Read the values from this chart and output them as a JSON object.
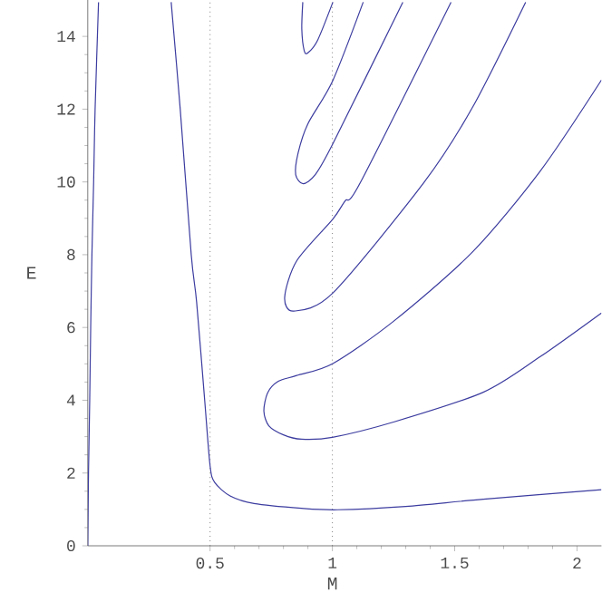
{
  "chart_data": {
    "type": "line",
    "xlabel": "M",
    "ylabel": "E",
    "xlim": [
      0,
      2.1
    ],
    "ylim": [
      0,
      15
    ],
    "xticks": [
      0.5,
      1,
      1.5,
      2
    ],
    "yticks": [
      0,
      2,
      4,
      6,
      8,
      10,
      12,
      14
    ],
    "marker": "none",
    "line_style": "solid",
    "ref_lines": [
      {
        "axis": "x",
        "value": 0.5,
        "color": "#808080",
        "line_style": "dotted"
      },
      {
        "axis": "x",
        "value": 1,
        "color": "#808080",
        "line_style": "dotted"
      }
    ],
    "series": [
      {
        "color": "#3c3ca0",
        "x": [
          0,
          0.003,
          0.008,
          0.012,
          0.017,
          0.024,
          0.03,
          0.044
        ],
        "values": [
          0,
          2,
          4,
          6,
          8,
          10,
          12,
          14.94
        ]
      },
      {
        "color": "#3c3ca0",
        "x": [
          0.341,
          0.378,
          0.423,
          0.445,
          0.478,
          0.5,
          0.519,
          0.582,
          0.68,
          0.873,
          1.02,
          1.3,
          1.617,
          2.1
        ],
        "values": [
          14.94,
          12,
          8,
          6.7,
          4,
          2.2,
          1.74,
          1.37,
          1.16,
          1.03,
          0.99,
          1.08,
          1.28,
          1.54
        ]
      },
      {
        "color": "#3c3ca0",
        "x": [
          2.1,
          1.85,
          1.572,
          1.25,
          1.002,
          0.854,
          0.779,
          0.735,
          0.72,
          0.74,
          0.8,
          0.873,
          1,
          1.25,
          1.617,
          1.85,
          2.1
        ],
        "values": [
          12.8,
          10.3,
          8.07,
          6.17,
          5.01,
          4.68,
          4.52,
          4.2,
          3.7,
          3.3,
          3.05,
          2.93,
          2.98,
          3.4,
          4.22,
          5.2,
          6.4
        ]
      },
      {
        "color": "#3c3ca0",
        "x": [
          1.485,
          1.114,
          1.052,
          1.002,
          0.854,
          0.805,
          0.842,
          1.002,
          1.374,
          1.572,
          1.79
        ],
        "values": [
          14.94,
          9.98,
          9.48,
          8.98,
          7.83,
          6.83,
          6.45,
          6.95,
          9.98,
          12.04,
          14.94
        ]
      },
      {
        "color": "#3c3ca0",
        "x": [
          1.126,
          1.002,
          0.9,
          0.86,
          0.85,
          0.88,
          0.93,
          1.002,
          1.288
        ],
        "values": [
          14.94,
          12.79,
          11.6,
          10.8,
          10.2,
          9.95,
          10.2,
          11.05,
          14.94
        ]
      },
      {
        "color": "#3c3ca0",
        "x": [
          0.879,
          0.875,
          0.885,
          0.9,
          0.94,
          1.002
        ],
        "values": [
          14.94,
          14.2,
          13.6,
          13.55,
          13.9,
          14.94
        ]
      }
    ]
  }
}
